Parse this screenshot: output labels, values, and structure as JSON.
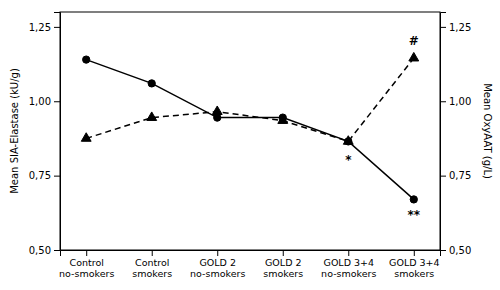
{
  "chart_data": {
    "type": "line",
    "categories": [
      "Control\nno-smokers",
      "Control\nsmokers",
      "GOLD 2\nno-smokers",
      "GOLD 2\nsmokers",
      "GOLD 3+4\nno-smokers",
      "GOLD 3+4\nsmokers"
    ],
    "series": [
      {
        "values": [
          1.14,
          1.06,
          0.945,
          0.945,
          0.865,
          0.67
        ],
        "color": "#000000",
        "marker": "circle",
        "line_style": "solid"
      },
      {
        "values": [
          0.875,
          0.945,
          0.965,
          0.935,
          0.865,
          1.145
        ],
        "color": "#000000",
        "marker": "triangle",
        "line_style": "dashed",
        "axis": "y2"
      }
    ],
    "ylabel": "Mean SIA-Elastase (kU/g)",
    "y2label": "Mean OxyAAT (g/L)",
    "ylim": [
      0.5,
      1.3
    ],
    "yticks": [
      {
        "value": 0.5,
        "label": "0,50"
      },
      {
        "value": 0.75,
        "label": "0,75"
      },
      {
        "value": 1.0,
        "label": "1,00"
      },
      {
        "value": 1.25,
        "label": "1,25"
      }
    ],
    "y2lim": [
      0.5,
      1.3
    ],
    "y2ticks": [
      {
        "value": 0.5,
        "label": "0,50"
      },
      {
        "value": 0.75,
        "label": "0,75"
      },
      {
        "value": 1.0,
        "label": "1,00"
      },
      {
        "value": 1.25,
        "label": "1,25"
      }
    ],
    "annotations": [
      {
        "text": "*",
        "x": 4,
        "y": 0.8
      },
      {
        "text": "**",
        "x": 5,
        "y": 0.615
      },
      {
        "text": "#",
        "x": 5,
        "y": 1.2
      }
    ],
    "grid": false
  }
}
